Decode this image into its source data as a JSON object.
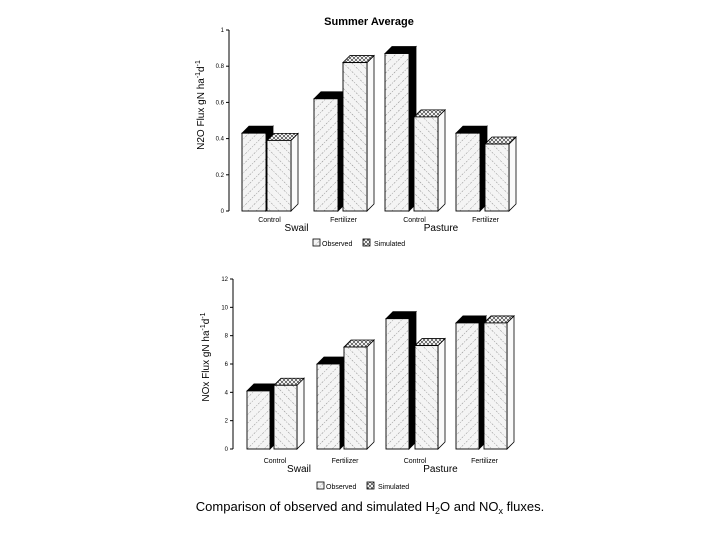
{
  "caption": {
    "before": "Comparison of observed and simulated H",
    "sub1": "2",
    "middle": "O and NO",
    "sub2": "x",
    "after": " fluxes."
  },
  "colors": {
    "ink": "#000000",
    "background": "#ffffff",
    "front_face": "#f4f4f4",
    "side_face": "#000000"
  },
  "chart_data": [
    {
      "type": "bar",
      "title": "Summer Average",
      "ylabel_parts": [
        "N2O Flux gN ha",
        "-1",
        "d",
        "-1"
      ],
      "ylim": [
        0,
        1
      ],
      "yticks": [
        "0",
        "0.2",
        "0.4",
        "0.6",
        "0.8",
        "1"
      ],
      "yticks_values": [
        0,
        0.2,
        0.4,
        0.6,
        0.8,
        1
      ],
      "categories": [
        "Control",
        "Fertilizer",
        "Control",
        "Fertilizer"
      ],
      "groups": [
        "Swail",
        "Pasture"
      ],
      "series": [
        {
          "name": "Observed",
          "values": [
            0.43,
            0.62,
            0.87,
            0.43
          ]
        },
        {
          "name": "Simulated",
          "values": [
            0.39,
            0.82,
            0.52,
            0.37
          ]
        }
      ],
      "legend": [
        "Observed",
        "Simulated"
      ],
      "grid": false
    },
    {
      "type": "bar",
      "title": "",
      "ylabel_parts": [
        "NOx Flux gN ha",
        "-1",
        "d",
        "-1"
      ],
      "ylim": [
        0,
        12
      ],
      "yticks": [
        "0",
        "2",
        "4",
        "6",
        "8",
        "10",
        "12"
      ],
      "yticks_values": [
        0,
        2,
        4,
        6,
        8,
        10,
        12
      ],
      "categories": [
        "Control",
        "Fertilizer",
        "Control",
        "Fertilizer"
      ],
      "groups": [
        "Swail",
        "Pasture"
      ],
      "series": [
        {
          "name": "Observed",
          "values": [
            4.1,
            6.0,
            9.2,
            8.9
          ]
        },
        {
          "name": "Simulated",
          "values": [
            4.5,
            7.2,
            7.3,
            8.9
          ]
        }
      ],
      "legend": [
        "Observed",
        "Simulated"
      ],
      "grid": false
    }
  ]
}
